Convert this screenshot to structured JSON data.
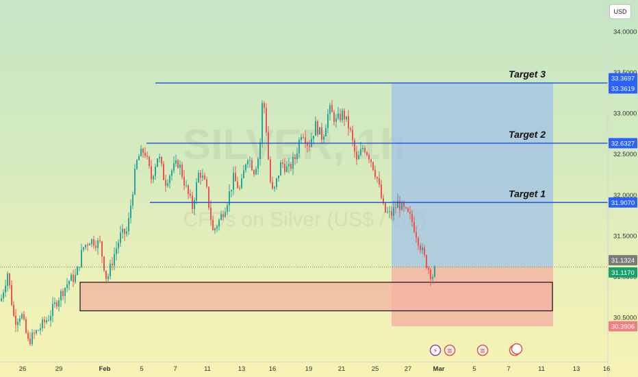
{
  "currency": "USD",
  "watermark": {
    "ticker": "SILVER, 1h",
    "description": "CFDs on Silver (US$ / OZ)"
  },
  "colors": {
    "up": "#26a69a",
    "down": "#ef5350",
    "target_line": "#1f4fd8",
    "profit_zone": "#9fc2e7",
    "loss_zone": "#f5a8a0",
    "support_box": "#f4b3a0",
    "last_price": "#17a06a",
    "prev_close": "#7a7a7a",
    "stop_price": "#f08080"
  },
  "chart_data": {
    "type": "candlestick",
    "title": "",
    "xlabel": "",
    "ylabel": "",
    "ylim": [
      30.32,
      34.25
    ],
    "y_ticks": [
      "34.0000",
      "33.5000",
      "33.0000",
      "32.5000",
      "32.0000",
      "31.5000",
      "31.0000",
      "30.5000"
    ],
    "x_ticks": [
      "26",
      "29",
      "Feb",
      "5",
      "7",
      "11",
      "13",
      "16",
      "19",
      "21",
      "25",
      "27",
      "Mar",
      "5",
      "7",
      "11",
      "13",
      "16"
    ],
    "targets": [
      {
        "label": "Target 3",
        "price": 33.3697,
        "tag": "33.3697"
      },
      {
        "label": "Target 2",
        "price": 32.6327,
        "tag": "32.6327"
      },
      {
        "label": "Target 1",
        "price": 31.907,
        "tag": "31.9070"
      }
    ],
    "price_tags": [
      {
        "value": 33.3619,
        "text": "33.3619",
        "kind": "line"
      },
      {
        "value": 31.1324,
        "text": "31.1324",
        "kind": "prev"
      },
      {
        "value": 31.117,
        "text": "31.1170",
        "kind": "last"
      },
      {
        "value": 30.3906,
        "text": "30.3906",
        "kind": "stop"
      }
    ],
    "support_zone": {
      "low": 30.58,
      "high": 30.93
    },
    "position": {
      "entry": 31.117,
      "target": 33.3697,
      "stop": 30.3906
    },
    "anchor_points": [
      [
        0,
        30.7
      ],
      [
        10,
        31.05
      ],
      [
        20,
        30.45
      ],
      [
        30,
        30.55
      ],
      [
        40,
        30.2
      ],
      [
        55,
        30.35
      ],
      [
        70,
        30.5
      ],
      [
        85,
        30.75
      ],
      [
        100,
        30.95
      ],
      [
        110,
        31.0
      ],
      [
        120,
        31.35
      ],
      [
        130,
        31.45
      ],
      [
        145,
        31.4
      ],
      [
        155,
        30.95
      ],
      [
        165,
        31.25
      ],
      [
        175,
        31.5
      ],
      [
        185,
        31.55
      ],
      [
        195,
        32.2
      ],
      [
        200,
        32.45
      ],
      [
        210,
        32.55
      ],
      [
        220,
        32.2
      ],
      [
        230,
        32.5
      ],
      [
        240,
        32.15
      ],
      [
        250,
        32.3
      ],
      [
        260,
        32.4
      ],
      [
        270,
        32.1
      ],
      [
        280,
        31.85
      ],
      [
        290,
        32.3
      ],
      [
        300,
        32.1
      ],
      [
        310,
        31.55
      ],
      [
        320,
        31.7
      ],
      [
        330,
        31.9
      ],
      [
        340,
        32.2
      ],
      [
        350,
        32.05
      ],
      [
        360,
        32.5
      ],
      [
        370,
        32.3
      ],
      [
        378,
        32.5
      ],
      [
        383,
        33.25
      ],
      [
        388,
        32.8
      ],
      [
        393,
        32.2
      ],
      [
        398,
        32.0
      ],
      [
        410,
        32.4
      ],
      [
        420,
        32.3
      ],
      [
        430,
        32.45
      ],
      [
        440,
        32.8
      ],
      [
        450,
        32.6
      ],
      [
        460,
        32.85
      ],
      [
        470,
        32.7
      ],
      [
        480,
        33.05
      ],
      [
        490,
        32.9
      ],
      [
        500,
        33.0
      ],
      [
        510,
        32.8
      ],
      [
        520,
        32.4
      ],
      [
        530,
        32.6
      ],
      [
        540,
        32.45
      ],
      [
        550,
        32.2
      ],
      [
        560,
        31.8
      ],
      [
        570,
        31.75
      ],
      [
        580,
        31.9
      ],
      [
        590,
        31.8
      ],
      [
        600,
        31.7
      ],
      [
        610,
        31.45
      ],
      [
        620,
        31.2
      ],
      [
        630,
        31.0
      ],
      [
        636,
        31.1
      ]
    ]
  }
}
